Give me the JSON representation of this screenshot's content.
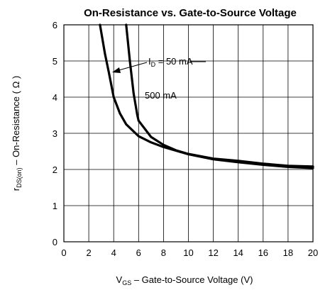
{
  "chart_data": {
    "type": "line",
    "title": "On-Resistance vs. Gate-to-Source Voltage",
    "xlabel": {
      "main": "V",
      "sub": "GS",
      "rest": " – Gate-to-Source Voltage (V)"
    },
    "ylabel": {
      "main": "r",
      "sub": "DS(on)",
      "rest": " – On-Resistance ( Ω )"
    },
    "xlim": [
      0,
      20
    ],
    "ylim": [
      0,
      6
    ],
    "xticks": [
      "0",
      "2",
      "4",
      "6",
      "8",
      "10",
      "12",
      "14",
      "16",
      "18",
      "20"
    ],
    "yticks": [
      "0",
      "1",
      "2",
      "3",
      "4",
      "5",
      "6"
    ],
    "grid": true,
    "series": [
      {
        "name": "50 mA",
        "x": [
          2.9,
          3.3,
          3.6,
          4.0,
          4.5,
          5.0,
          6.0,
          7.0,
          8.0,
          9.0,
          10.0,
          12.0,
          14.0,
          16.0,
          18.0,
          20.0
        ],
        "y": [
          6.0,
          5.2,
          4.7,
          4.0,
          3.55,
          3.25,
          2.92,
          2.75,
          2.62,
          2.52,
          2.42,
          2.28,
          2.2,
          2.13,
          2.07,
          2.04
        ]
      },
      {
        "name": "500 mA",
        "x": [
          5.0,
          5.3,
          5.6,
          5.9,
          6.0,
          7.0,
          8.0,
          9.0,
          10.0,
          12.0,
          14.0,
          16.0,
          18.0,
          20.0
        ],
        "y": [
          6.0,
          5.0,
          4.1,
          3.5,
          3.35,
          2.9,
          2.68,
          2.53,
          2.43,
          2.3,
          2.24,
          2.16,
          2.1,
          2.08
        ]
      }
    ],
    "annotations": [
      {
        "main": "I",
        "sub": "D",
        "rest": " = 50 mA"
      },
      {
        "text": "500 mA"
      }
    ]
  }
}
